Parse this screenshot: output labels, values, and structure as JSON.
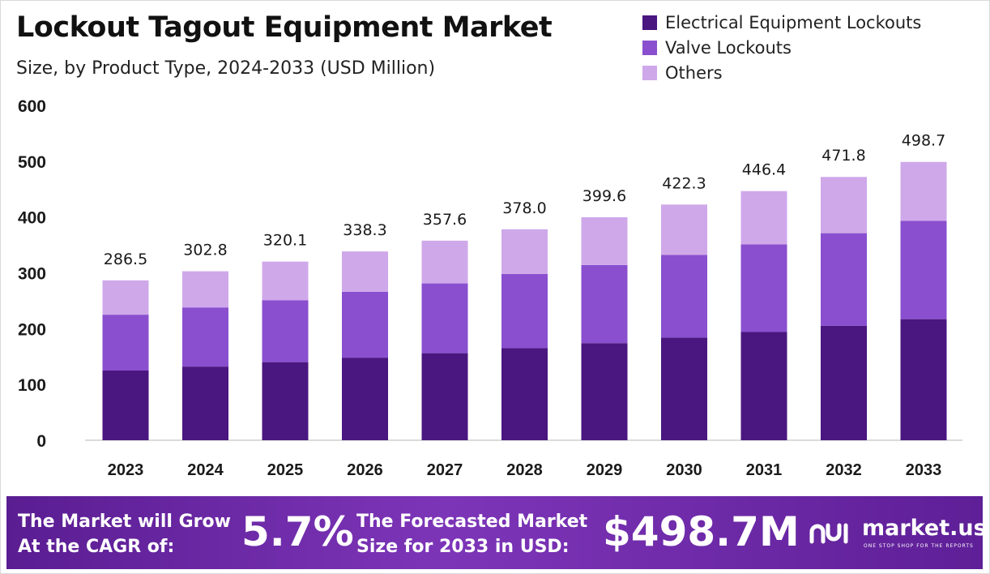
{
  "title": "Lockout Tagout Equipment Market",
  "subtitle": "Size, by Product Type, 2024-2033 (USD Million)",
  "colors": {
    "electrical": "#4a1680",
    "valve": "#8a4fcf",
    "others": "#cfa8ea",
    "footer": "#6a29a5"
  },
  "chart_data": {
    "type": "bar",
    "stacked": true,
    "categories": [
      "2023",
      "2024",
      "2025",
      "2026",
      "2027",
      "2028",
      "2029",
      "2030",
      "2031",
      "2032",
      "2033"
    ],
    "series": [
      {
        "name": "Electrical Equipment Lockouts",
        "values": [
          125,
          132,
          140,
          148,
          156,
          165,
          174,
          184,
          194,
          205,
          217
        ]
      },
      {
        "name": "Valve Lockouts",
        "values": [
          100,
          106,
          111,
          118,
          125,
          133,
          140,
          148,
          157,
          166,
          176
        ]
      },
      {
        "name": "Others",
        "values": [
          61.5,
          64.8,
          69.1,
          72.3,
          76.6,
          80.0,
          85.6,
          90.3,
          95.4,
          100.8,
          105.7
        ]
      }
    ],
    "totals": [
      "286.5",
      "302.8",
      "320.1",
      "338.3",
      "357.6",
      "378.0",
      "399.6",
      "422.3",
      "446.4",
      "471.8",
      "498.7"
    ],
    "yticks": [
      "0",
      "100",
      "200",
      "300",
      "400",
      "500",
      "600"
    ],
    "ylim": [
      0,
      600
    ],
    "grid": false,
    "legend_position": "top-right"
  },
  "footer": {
    "cagr_label_line1": "The Market will Grow",
    "cagr_label_line2": "At the CAGR of:",
    "cagr_value": "5.7%",
    "forecast_label_line1": "The Forecasted Market",
    "forecast_label_line2": "Size for 2033 in USD:",
    "forecast_value": "$498.7M",
    "brand_name": "market.us",
    "brand_tagline": "ONE STOP SHOP FOR THE REPORTS"
  }
}
